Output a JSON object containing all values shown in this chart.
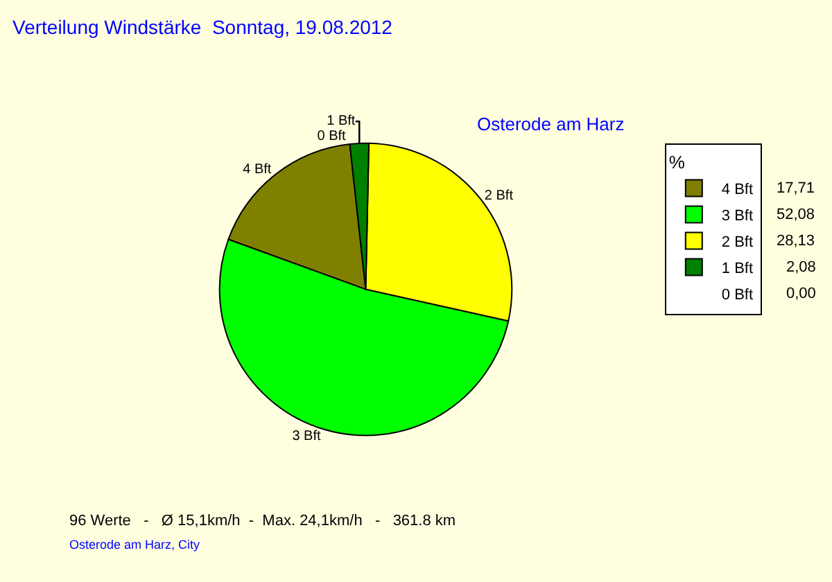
{
  "chart_data": {
    "type": "pie",
    "title": "Verteilung Windstärke  Sonntag, 19.08.2012",
    "subtitle": "Osterode am Harz",
    "categories": [
      "4 Bft",
      "3 Bft",
      "2 Bft",
      "1 Bft",
      "0 Bft"
    ],
    "values": [
      17.71,
      52.08,
      28.13,
      2.08,
      0.0
    ],
    "value_labels": [
      "17,71",
      "52,08",
      "28,13",
      "2,08",
      "0,00"
    ],
    "colors": [
      "#808000",
      "#00ff00",
      "#ffff00",
      "#008000",
      "#ffffff"
    ],
    "legend_title": "%",
    "legend": "top right",
    "annotations": [
      "96 Werte   -   Ø 15,1km/h  -  Max. 24,1km/h   -   361.8 km",
      "Osterode am Harz, City"
    ]
  }
}
